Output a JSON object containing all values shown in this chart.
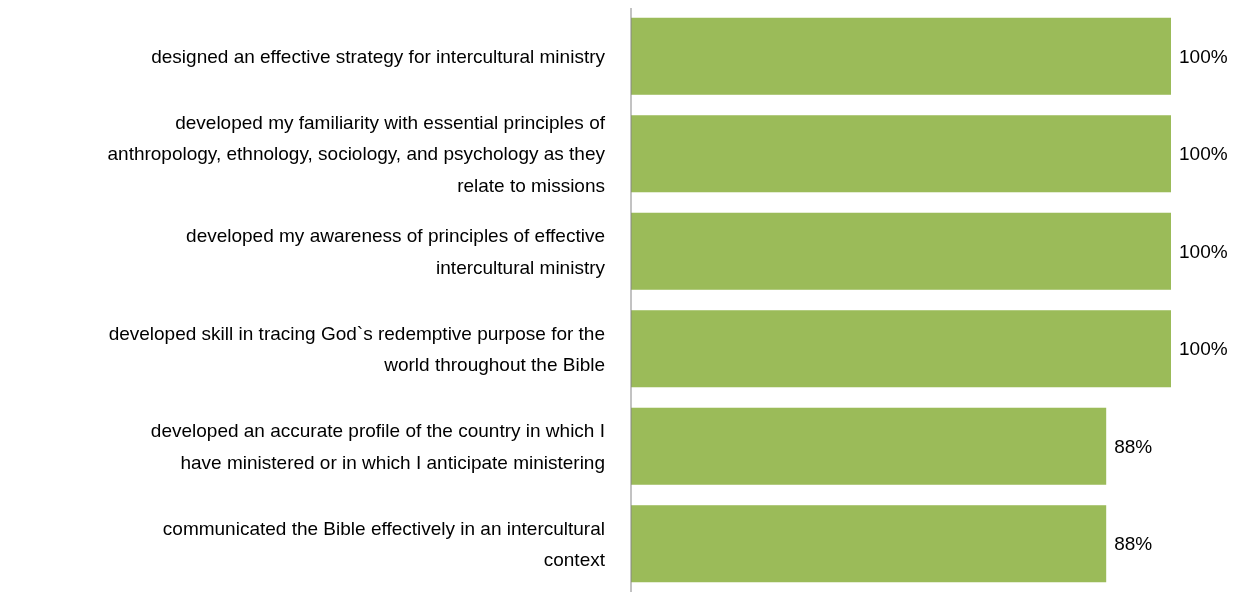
{
  "chart_data": {
    "type": "bar",
    "orientation": "horizontal",
    "categories": [
      "designed an effective strategy for intercultural ministry",
      "developed my familiarity with essential principles of anthropology, ethnology, sociology, and psychology as they relate to missions",
      "developed my awareness of principles of effective intercultural ministry",
      "developed skill in tracing God`s redemptive purpose for the world throughout the Bible",
      "developed an accurate profile of the country in which I have ministered or in which I anticipate ministering",
      "communicated the Bible effectively in an intercultural context"
    ],
    "values": [
      100,
      100,
      100,
      100,
      88,
      88
    ],
    "value_labels": [
      "100%",
      "100%",
      "100%",
      "100%",
      "88%",
      "88%"
    ],
    "color": "#9bbb59"
  }
}
